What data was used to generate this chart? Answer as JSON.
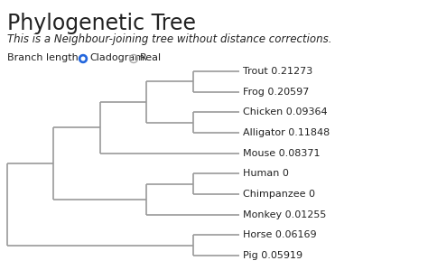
{
  "title": "Phylogenetic Tree",
  "subtitle": "This is a Neighbour-joining tree without distance corrections.",
  "branch_label": "Branch length:",
  "taxa": [
    {
      "name": "Trout",
      "value": "0.21273",
      "y": 9
    },
    {
      "name": "Frog",
      "value": "0.20597",
      "y": 8
    },
    {
      "name": "Chicken",
      "value": "0.09364",
      "y": 7
    },
    {
      "name": "Alligator",
      "value": "0.11848",
      "y": 6
    },
    {
      "name": "Mouse",
      "value": "0.08371",
      "y": 5
    },
    {
      "name": "Human",
      "value": "0",
      "y": 4
    },
    {
      "name": "Chimpanzee",
      "value": "0",
      "y": 3
    },
    {
      "name": "Monkey",
      "value": "0.01255",
      "y": 2
    },
    {
      "name": "Horse",
      "value": "0.06169",
      "y": 1
    },
    {
      "name": "Pig",
      "value": "0.05919",
      "y": 0
    }
  ],
  "tree_color": "#999999",
  "bg_color": "#ffffff",
  "text_color": "#222222",
  "title_fontsize": 17,
  "subtitle_fontsize": 8.5,
  "label_fontsize": 8,
  "branch_label_fontsize": 8,
  "tree_lw": 1.2,
  "radio_filled_color": "#2266dd",
  "radio_empty_color": "#aaaaaa"
}
